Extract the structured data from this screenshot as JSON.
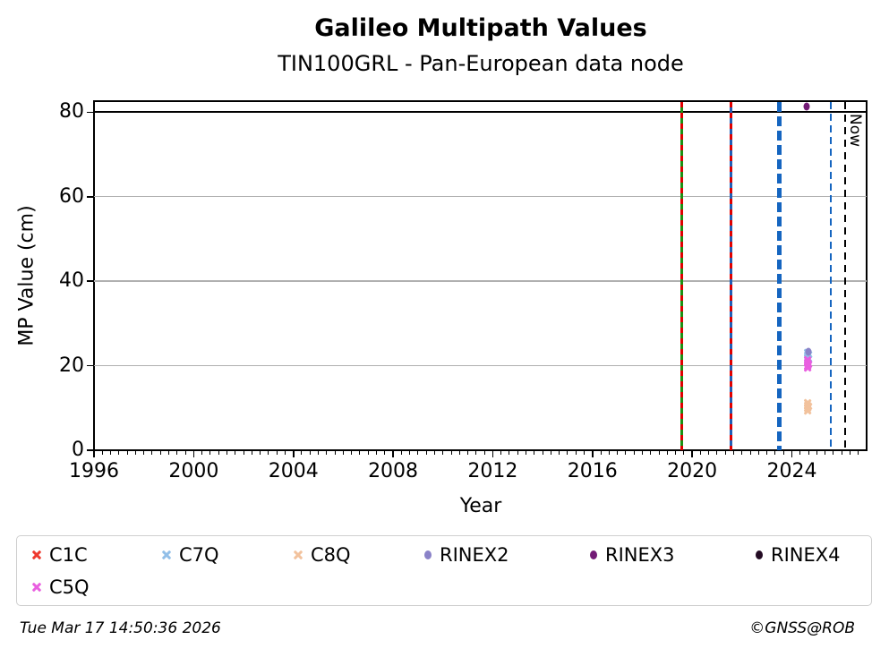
{
  "title": "Galileo Multipath Values",
  "subtitle": "TIN100GRL - Pan-European data node",
  "footer": {
    "timestamp": "Tue Mar 17 14:50:36 2026",
    "credit": "©GNSS@ROB"
  },
  "chart_data": {
    "type": "scatter",
    "title": "Galileo Multipath Values",
    "subtitle": "TIN100GRL - Pan-European data node",
    "xlabel": "Year",
    "ylabel": "MP Value (cm)",
    "xlim": [
      1996,
      2027
    ],
    "ylim": [
      0,
      82.4
    ],
    "x_major_ticks": [
      1996,
      2000,
      2004,
      2008,
      2012,
      2016,
      2020,
      2024
    ],
    "x_minor_step_years": 0.33333,
    "y_ticks": [
      0,
      20,
      40,
      60,
      80
    ],
    "grid_y": [
      20,
      40,
      60
    ],
    "grid_on": true,
    "grid_color": "#b0b0b0",
    "threshold_line": {
      "y": 80,
      "color": "#000000",
      "style": "solid"
    },
    "now_line": {
      "year": 2026.15,
      "label": "Now",
      "color": "#000000",
      "style": "dashed",
      "width": 2
    },
    "event_lines": [
      {
        "name": "event-2019-green-red",
        "year": 2019.59,
        "base_color": "#1a9212",
        "base_style": "solid",
        "width": 3,
        "overlay_color": "#e00000",
        "overlay_style": "dashed"
      },
      {
        "name": "event-2021-blue-red",
        "year": 2021.57,
        "base_color": "#205eb5",
        "base_style": "solid",
        "width": 3,
        "overlay_color": "#e00000",
        "overlay_style": "dashed"
      },
      {
        "name": "event-2023-blue-dashed-thick",
        "year": 2023.5,
        "base_color": "#1565c0",
        "base_style": "dashed",
        "width": 4.5
      },
      {
        "name": "event-2025-blue-dashed-thin",
        "year": 2025.57,
        "base_color": "#1565c0",
        "base_style": "dashed",
        "width": 2.5
      }
    ],
    "series": [
      {
        "name": "C1C",
        "marker": "x",
        "color": "#ee392e",
        "points": []
      },
      {
        "name": "C7Q",
        "marker": "x",
        "color": "#92bfe8",
        "points": [
          [
            2024.64,
            23.1
          ],
          [
            2024.64,
            22.5
          ],
          [
            2024.64,
            21.9
          ],
          [
            2024.64,
            21.3
          ],
          [
            2024.67,
            22.7
          ],
          [
            2024.67,
            21.7
          ]
        ]
      },
      {
        "name": "C8Q",
        "marker": "x",
        "color": "#f2c29d",
        "points": [
          [
            2024.64,
            11.3
          ],
          [
            2024.64,
            10.6
          ],
          [
            2024.64,
            9.9
          ],
          [
            2024.64,
            9.3
          ],
          [
            2024.67,
            10.4
          ]
        ]
      },
      {
        "name": "RINEX2",
        "marker": "circle",
        "color": "#8a82c8",
        "points": [
          [
            2024.65,
            23.4
          ]
        ]
      },
      {
        "name": "RINEX3",
        "marker": "circle",
        "color": "#731b76",
        "points": [
          [
            2024.6,
            81.3
          ]
        ]
      },
      {
        "name": "RINEX4",
        "marker": "circle",
        "color": "#230b23",
        "points": []
      },
      {
        "name": "C5Q",
        "marker": "x",
        "color": "#e95fe0",
        "points": [
          [
            2024.64,
            21.4
          ],
          [
            2024.64,
            20.7
          ],
          [
            2024.64,
            20.0
          ],
          [
            2024.64,
            19.4
          ],
          [
            2024.67,
            20.4
          ]
        ]
      }
    ],
    "legend": {
      "position": "bottom",
      "order": [
        "C1C",
        "C7Q",
        "C8Q",
        "RINEX2",
        "RINEX3",
        "RINEX4",
        "C5Q"
      ]
    }
  }
}
